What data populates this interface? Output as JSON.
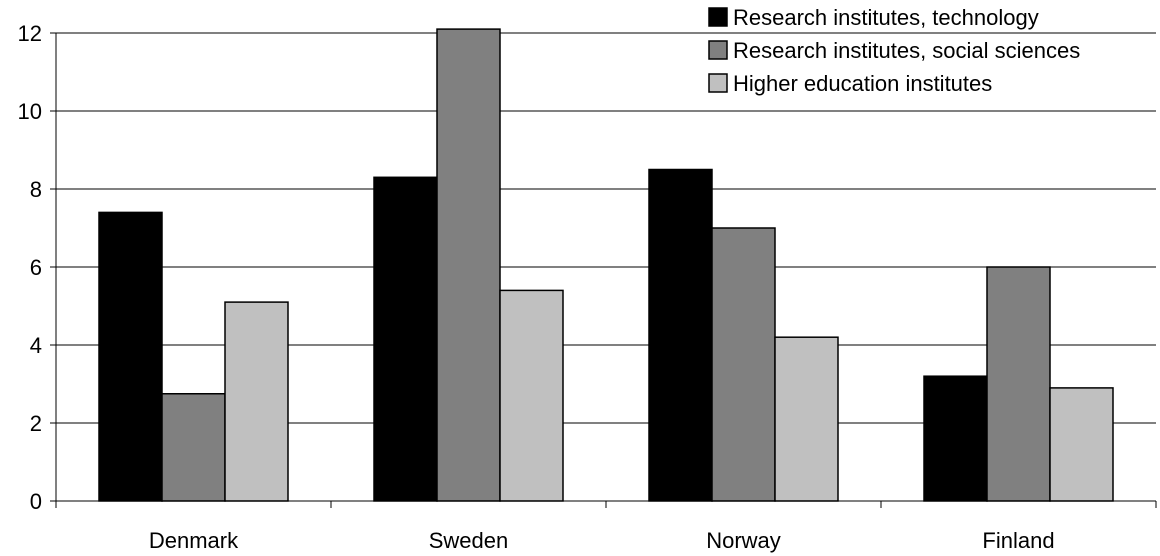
{
  "chart_data": {
    "type": "bar",
    "categories": [
      "Denmark",
      "Sweden",
      "Norway",
      "Finland"
    ],
    "series": [
      {
        "name": "Research institutes, technology",
        "values": [
          7.4,
          8.3,
          8.5,
          3.2
        ],
        "color": "#000000"
      },
      {
        "name": "Research institutes, social sciences",
        "values": [
          2.75,
          12.1,
          7.0,
          6.0
        ],
        "color": "#808080"
      },
      {
        "name": "Higher education institutes",
        "values": [
          5.1,
          5.4,
          4.2,
          2.9
        ],
        "color": "#c0c0c0"
      }
    ],
    "yticks": [
      "0",
      "2",
      "4",
      "6",
      "8",
      "10",
      "12"
    ],
    "ylim": [
      0,
      12
    ],
    "grid": true,
    "legend_position": "top-right"
  }
}
